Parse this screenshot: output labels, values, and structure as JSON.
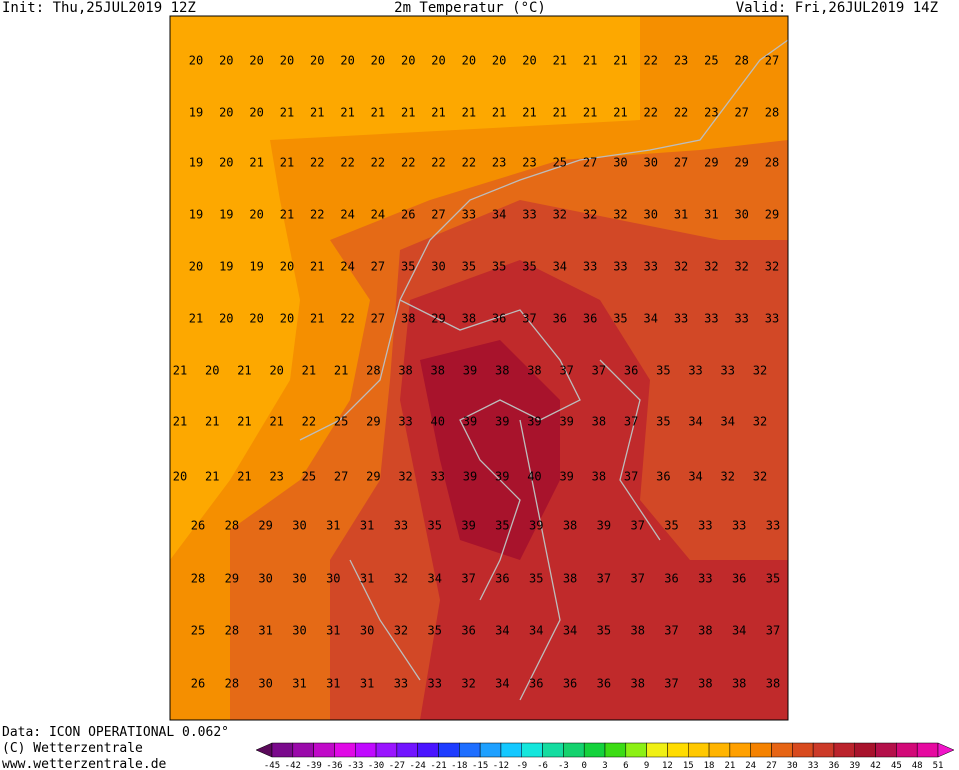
{
  "header": {
    "init": "Init: Thu,25JUL2019 12Z",
    "title": "2m Temperatur (°C)",
    "valid": "Valid: Fri,26JUL2019 14Z"
  },
  "grid": {
    "rows": [
      [
        20,
        20,
        20,
        20,
        20,
        20,
        20,
        20,
        20,
        20,
        20,
        20,
        21,
        21,
        21,
        22,
        23,
        25,
        28,
        27
      ],
      [
        19,
        20,
        20,
        21,
        21,
        21,
        21,
        21,
        21,
        21,
        21,
        21,
        21,
        21,
        21,
        22,
        22,
        23,
        27,
        28
      ],
      [
        19,
        20,
        21,
        21,
        22,
        22,
        22,
        22,
        22,
        22,
        23,
        23,
        25,
        27,
        30,
        30,
        27,
        29,
        29,
        28
      ],
      [
        19,
        19,
        20,
        21,
        22,
        24,
        24,
        26,
        27,
        33,
        34,
        33,
        32,
        32,
        32,
        30,
        31,
        31,
        30,
        29
      ],
      [
        20,
        19,
        19,
        20,
        21,
        24,
        27,
        35,
        30,
        35,
        35,
        35,
        34,
        33,
        33,
        33,
        32,
        32,
        32,
        32
      ],
      [
        21,
        20,
        20,
        20,
        21,
        22,
        27,
        38,
        29,
        38,
        36,
        37,
        36,
        36,
        35,
        34,
        33,
        33,
        33,
        33
      ],
      [
        21,
        20,
        21,
        20,
        21,
        21,
        28,
        38,
        38,
        39,
        38,
        38,
        37,
        37,
        36,
        35,
        33,
        33,
        32
      ],
      [
        21,
        21,
        21,
        21,
        22,
        25,
        29,
        33,
        40,
        39,
        39,
        39,
        39,
        38,
        37,
        35,
        34,
        34,
        32
      ],
      [
        20,
        21,
        21,
        23,
        25,
        27,
        29,
        32,
        33,
        39,
        39,
        40,
        39,
        38,
        37,
        36,
        34,
        32,
        32
      ],
      [
        26,
        28,
        29,
        30,
        31,
        31,
        33,
        35,
        39,
        35,
        39,
        38,
        39,
        37,
        35,
        33,
        33,
        33
      ],
      [
        28,
        29,
        30,
        30,
        30,
        31,
        32,
        34,
        37,
        36,
        35,
        38,
        37,
        37,
        36,
        33,
        36,
        35
      ],
      [
        25,
        28,
        31,
        30,
        31,
        30,
        32,
        35,
        36,
        34,
        34,
        34,
        35,
        38,
        37,
        38,
        34,
        37
      ],
      [
        26,
        28,
        30,
        31,
        31,
        31,
        33,
        33,
        32,
        34,
        36,
        36,
        36,
        38,
        37,
        38,
        38,
        38
      ]
    ]
  },
  "colorbar": {
    "labels": [
      -45,
      -42,
      -39,
      -36,
      -33,
      -30,
      -27,
      -24,
      -21,
      -18,
      -15,
      -12,
      -9,
      -6,
      -3,
      0,
      3,
      6,
      9,
      12,
      15,
      18,
      21,
      24,
      27,
      30,
      33,
      36,
      39,
      42,
      45,
      48,
      51
    ]
  },
  "footer": {
    "data": "Data: ICON OPERATIONAL 0.062°",
    "copyright": "(C) Wetterzentrale",
    "url": "www.wetterzentrale.de"
  }
}
